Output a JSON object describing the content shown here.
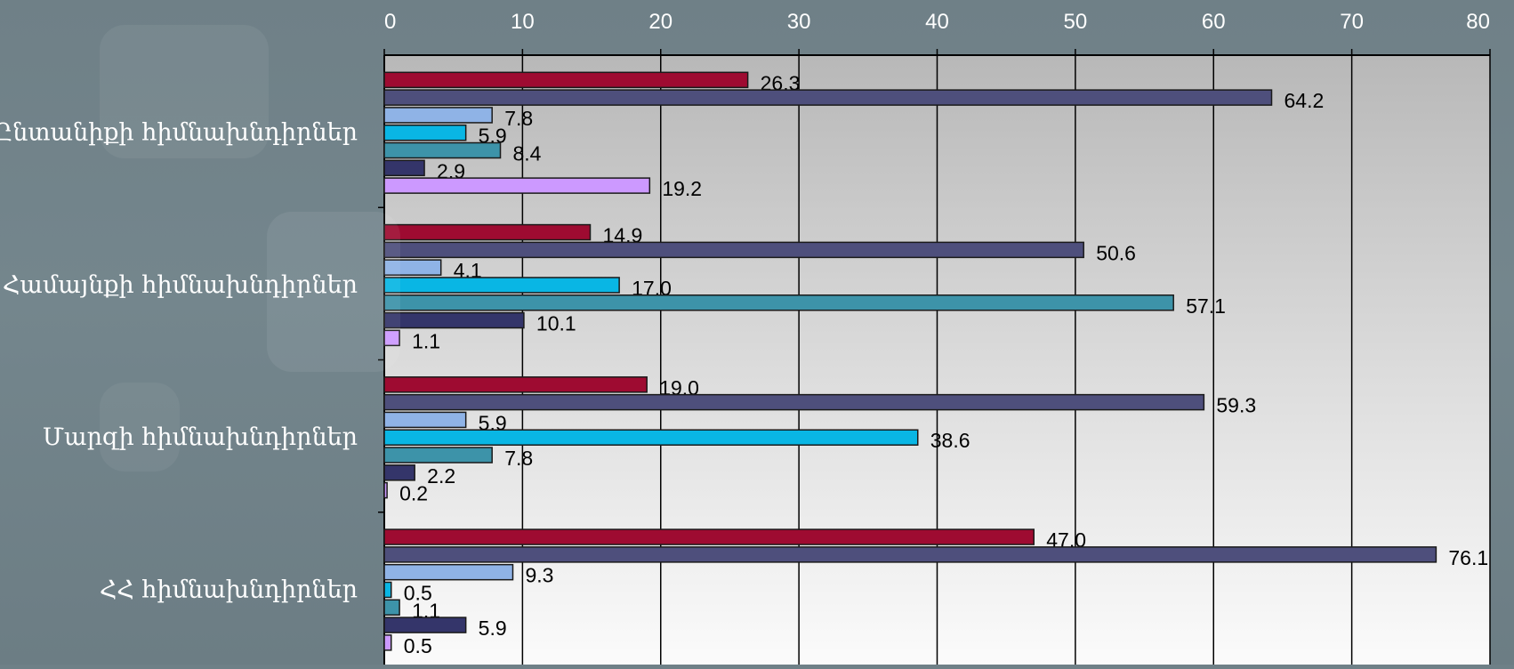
{
  "chart_data": {
    "type": "bar",
    "orientation": "horizontal",
    "categories": [
      "Ընտանիքի հիմնախնդիրներ",
      "Համայնքի հիմնախնդիրներ",
      "Մարզի հիմնախնդիրներ",
      "ՀՀ հիմնախնդիրներ"
    ],
    "series": [
      {
        "color": "#9e0b31",
        "values": [
          26.3,
          14.9,
          19.0,
          47.0
        ],
        "labels": [
          "26.3",
          "14.9",
          "19.0",
          "47.0"
        ]
      },
      {
        "color": "#4e4f7c",
        "values": [
          64.2,
          50.6,
          59.3,
          76.1
        ],
        "labels": [
          "64.2",
          "50.6",
          "59.3",
          "76.1"
        ]
      },
      {
        "color": "#8fb3e6",
        "values": [
          7.8,
          4.1,
          5.9,
          9.3
        ],
        "labels": [
          "7.8",
          "4.1",
          "5.9",
          "9.3"
        ]
      },
      {
        "color": "#09b6e4",
        "values": [
          5.9,
          17.0,
          38.6,
          0.5
        ],
        "labels": [
          "5.9",
          "17.0",
          "38.6",
          "0.5"
        ]
      },
      {
        "color": "#3d93a9",
        "values": [
          8.4,
          57.1,
          7.8,
          1.1
        ],
        "labels": [
          "8.4",
          "57.1",
          "7.8",
          "1.1"
        ]
      },
      {
        "color": "#34356a",
        "values": [
          2.9,
          10.1,
          2.2,
          5.9
        ],
        "labels": [
          "2.9",
          "10.1",
          "2.2",
          "5.9"
        ]
      },
      {
        "color": "#cc99ff",
        "values": [
          19.2,
          1.1,
          0.2,
          0.5
        ],
        "labels": [
          "19.2",
          "1.1",
          "0.2",
          "0.5"
        ]
      }
    ],
    "xlim": [
      0,
      80
    ],
    "xticks": [
      "0",
      "10",
      "20",
      "30",
      "40",
      "50",
      "60",
      "70",
      "80"
    ],
    "x_axis_position": "top",
    "grid": true,
    "legend": "none",
    "title": "",
    "xlabel": "",
    "ylabel": ""
  }
}
